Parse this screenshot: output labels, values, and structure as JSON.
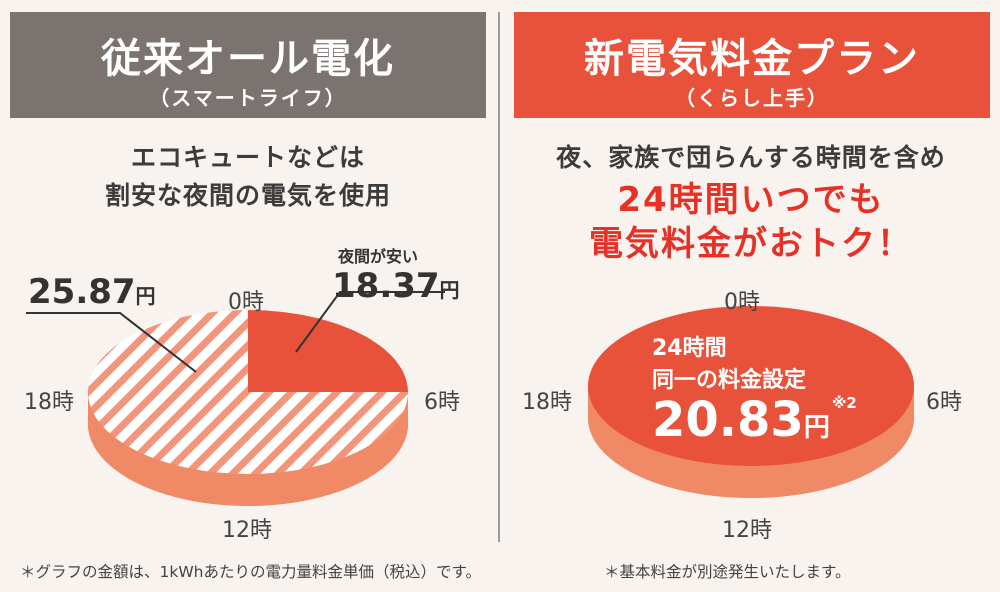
{
  "left": {
    "header_title": "従来オール電化",
    "header_subtitle": "（スマートライフ）",
    "description_lines": [
      "エコキュートなどは",
      "割安な夜間の電気を使用"
    ],
    "hours": {
      "top": "0時",
      "right": "6時",
      "bottom": "12時",
      "left": "18時"
    },
    "day_price_value": "25.87",
    "day_price_unit": "円",
    "night_label": "夜間が安い",
    "night_price_value": "18.37",
    "night_price_unit": "円"
  },
  "right": {
    "header_title": "新電気料金プラン",
    "header_subtitle": "（くらし上手）",
    "description_line": "夜、家族で団らんする時間を含め",
    "highlight_lines": [
      "24時間いつでも",
      "電気料金がおトク！"
    ],
    "hours": {
      "top": "0時",
      "right": "6時",
      "bottom": "12時",
      "left": "18時"
    },
    "flat_lines": [
      "24時間",
      "同一の料金設定"
    ],
    "flat_price_value": "20.83",
    "flat_price_unit": "円",
    "flat_note": "※2"
  },
  "footer": {
    "note1": "＊グラフの金額は、1kWhあたりの電力量料金単価（税込）です。",
    "note2": "＊基本料金が別途発生いたします。"
  },
  "colors": {
    "accent_red": "#e8523a",
    "header_gray": "#7a7370",
    "pie_side": "#f08a66",
    "stripe": "#f3957a",
    "text_red": "#e63226"
  }
}
